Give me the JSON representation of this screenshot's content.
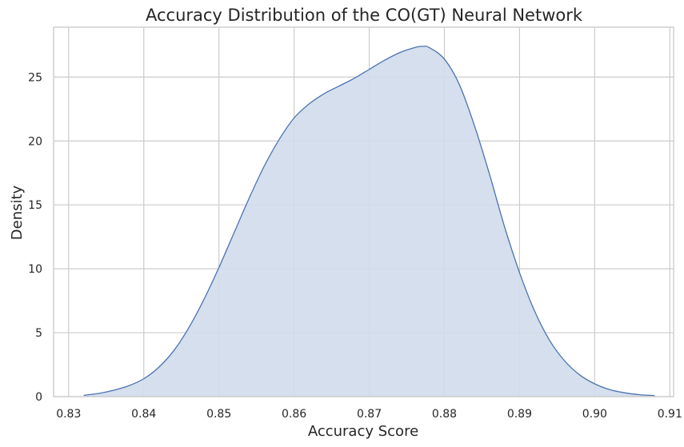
{
  "chart_data": {
    "type": "area",
    "title": "Accuracy Distribution of the CO(GT) Neural Network",
    "xlabel": "Accuracy Score",
    "ylabel": "Density",
    "xlim": [
      0.828,
      0.9105
    ],
    "ylim": [
      0,
      28.9
    ],
    "x_ticks": [
      0.83,
      0.84,
      0.85,
      0.86,
      0.87,
      0.88,
      0.89,
      0.9,
      0.91
    ],
    "x_tick_labels": [
      "0.83",
      "0.84",
      "0.85",
      "0.86",
      "0.87",
      "0.88",
      "0.89",
      "0.90",
      "0.91"
    ],
    "y_ticks": [
      0,
      5,
      10,
      15,
      20,
      25
    ],
    "y_tick_labels": [
      "0",
      "5",
      "10",
      "15",
      "20",
      "25"
    ],
    "grid": true,
    "series": [
      {
        "x": [
          0.832,
          0.834,
          0.836,
          0.838,
          0.84,
          0.842,
          0.844,
          0.846,
          0.848,
          0.85,
          0.852,
          0.854,
          0.856,
          0.858,
          0.86,
          0.862,
          0.864,
          0.866,
          0.868,
          0.87,
          0.872,
          0.874,
          0.876,
          0.877,
          0.878,
          0.88,
          0.882,
          0.884,
          0.886,
          0.888,
          0.89,
          0.892,
          0.894,
          0.896,
          0.898,
          0.9,
          0.902,
          0.904,
          0.906,
          0.908
        ],
        "y": [
          0.1,
          0.25,
          0.5,
          0.85,
          1.4,
          2.3,
          3.6,
          5.4,
          7.6,
          10.1,
          12.8,
          15.5,
          18.0,
          20.1,
          21.8,
          22.9,
          23.7,
          24.3,
          24.9,
          25.6,
          26.3,
          26.9,
          27.3,
          27.4,
          27.3,
          26.4,
          24.4,
          21.2,
          17.4,
          13.3,
          9.7,
          6.7,
          4.4,
          2.8,
          1.7,
          1.0,
          0.55,
          0.3,
          0.15,
          0.08
        ],
        "fill_color": "#d0dbeb",
        "line_color": "#4c72b0"
      }
    ],
    "colors": {
      "background": "#ffffff",
      "grid": "#cccccc",
      "frame": "#cccccc",
      "text": "#262626"
    }
  }
}
